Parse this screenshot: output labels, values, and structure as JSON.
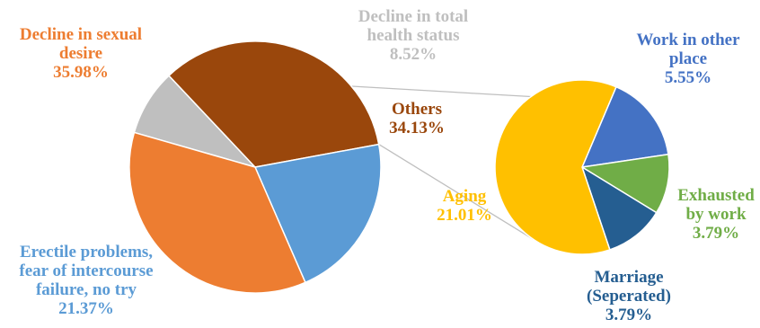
{
  "chart_data": {
    "type": "pie",
    "subtype": "bar-of-pie (pie of pie)",
    "title": "",
    "main_pie": {
      "slices": [
        {
          "key": "health",
          "label_lines": [
            "Decline in total",
            "health status"
          ],
          "value_label": "8.52%",
          "value": 8.52,
          "color": "#BFBFBF"
        },
        {
          "key": "others",
          "label_lines": [
            "Others"
          ],
          "value_label": "34.13%",
          "value": 34.13,
          "color": "#9A470C"
        },
        {
          "key": "erectile",
          "label_lines": [
            "Erectile problems,",
            "fear of intercourse",
            "failure, no try"
          ],
          "value_label": "21.37%",
          "value": 21.37,
          "color": "#5B9BD5"
        },
        {
          "key": "desire",
          "label_lines": [
            "Decline in sexual",
            "desire"
          ],
          "value_label": "35.98%",
          "value": 35.98,
          "color": "#ED7D31"
        }
      ]
    },
    "secondary_pie": {
      "slices": [
        {
          "key": "work",
          "label_lines": [
            "Work in other",
            "place"
          ],
          "value_label": "5.55%",
          "value": 5.55,
          "color": "#4472C4"
        },
        {
          "key": "exhausted",
          "label_lines": [
            "Exhausted",
            "by work"
          ],
          "value_label": "3.79%",
          "value": 3.79,
          "color": "#70AD47"
        },
        {
          "key": "marriage",
          "label_lines": [
            "Marriage",
            "(Seperated)"
          ],
          "value_label": "3.79%",
          "value": 3.79,
          "color": "#255E91"
        },
        {
          "key": "aging",
          "label_lines": [
            "Aging"
          ],
          "value_label": "21.01%",
          "value": 21.01,
          "color": "#FFC000"
        }
      ]
    },
    "connector_color": "#BFBFBF"
  }
}
